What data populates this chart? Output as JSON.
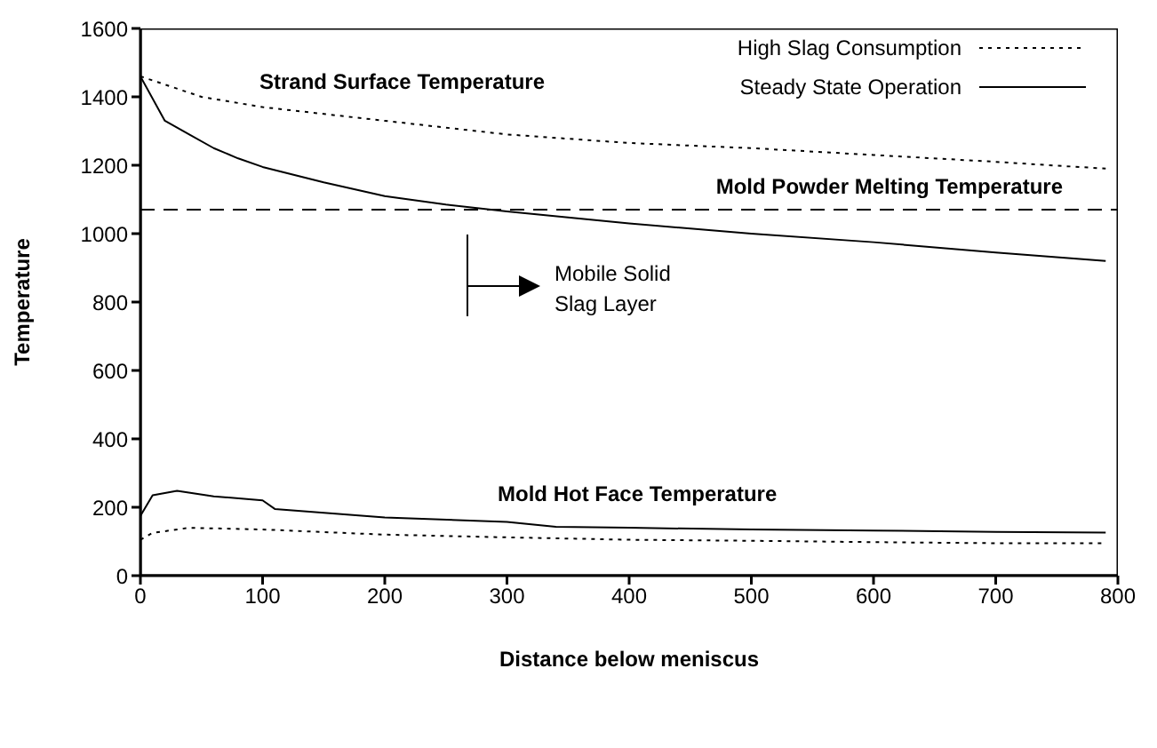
{
  "chart_data": {
    "type": "line",
    "xlabel": "Distance below meniscus",
    "ylabel": "Temperature",
    "xlim": [
      0,
      800
    ],
    "xticks": [
      0,
      100,
      200,
      300,
      400,
      500,
      600,
      700,
      800
    ],
    "ylim": [
      0,
      1600
    ],
    "yticks": [
      0,
      200,
      400,
      600,
      800,
      1000,
      1200,
      1400,
      1600
    ],
    "grid": false,
    "legend": "top right",
    "marker": "none",
    "series": [
      {
        "name": "High Slag Consumption",
        "color": "#000000",
        "line_style": "dotted",
        "x": [
          0,
          50,
          100,
          200,
          300,
          400,
          500,
          600,
          700,
          790
        ],
        "values": [
          1460,
          1400,
          1370,
          1330,
          1290,
          1265,
          1250,
          1230,
          1210,
          1190
        ]
      },
      {
        "name": "Steady State Operation",
        "color": "#000000",
        "line_style": "solid",
        "x": [
          0,
          20,
          40,
          60,
          80,
          100,
          150,
          200,
          250,
          300,
          400,
          500,
          600,
          700,
          790
        ],
        "values": [
          1460,
          1330,
          1290,
          1250,
          1220,
          1195,
          1150,
          1110,
          1085,
          1065,
          1030,
          1000,
          975,
          945,
          920
        ]
      },
      {
        "color": "#000000",
        "line_style": "solid",
        "x": [
          0,
          10,
          30,
          60,
          100,
          110,
          200,
          300,
          340,
          400,
          500,
          600,
          700,
          790
        ],
        "values": [
          175,
          235,
          248,
          232,
          220,
          195,
          170,
          157,
          143,
          140,
          135,
          132,
          128,
          126
        ]
      },
      {
        "color": "#000000",
        "line_style": "dotted",
        "x": [
          0,
          10,
          40,
          100,
          200,
          300,
          400,
          500,
          600,
          700,
          790
        ],
        "values": [
          105,
          125,
          140,
          135,
          120,
          112,
          105,
          102,
          98,
          95,
          95
        ]
      }
    ],
    "ref_lines": [
      {
        "axis": "y",
        "value": 1070,
        "label": "Mold Powder Melting Temperature",
        "color": "#000000",
        "line_style": "dashed"
      }
    ],
    "annotations": [
      "Strand Surface Temperature",
      "Mold Hot Face Temperature",
      "Mobile Solid\nSlag Layer"
    ]
  }
}
